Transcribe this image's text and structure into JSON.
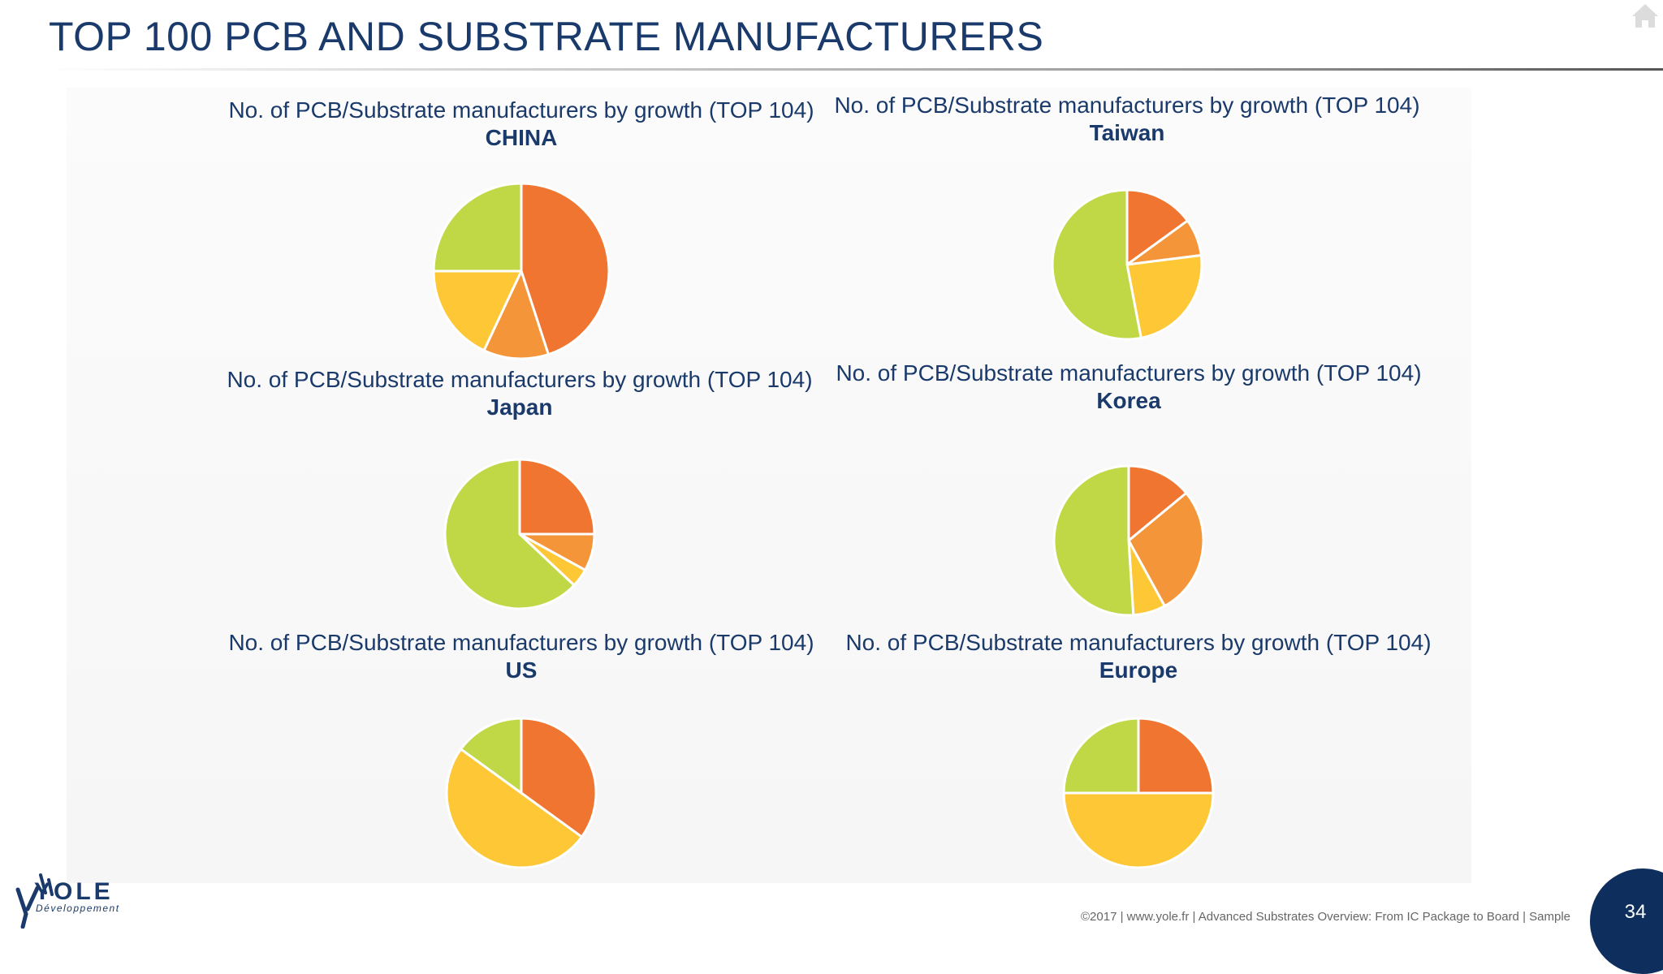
{
  "slide": {
    "title": "TOP 100 PCB AND SUBSTRATE MANUFACTURERS",
    "logo_word": "YOLE",
    "logo_sub": "Développement",
    "footer": "©2017 | www.yole.fr | Advanced Substrates Overview: From IC Package to Board | Sample",
    "page_number": "34"
  },
  "colors": {
    "title": "#1a3a6b",
    "dark_orange": "#ef7530",
    "light_orange": "#f5953a",
    "yellow": "#fdc736",
    "green": "#c0d845"
  },
  "chart_data": [
    {
      "type": "pie",
      "title": "No. of PCB/Substrate manufacturers by growth (TOP 104)",
      "subtitle": "CHINA",
      "slice_colors": [
        "#ef7530",
        "#f5953a",
        "#fdc736",
        "#c0d845"
      ],
      "values": [
        45,
        12,
        18,
        25
      ]
    },
    {
      "type": "pie",
      "title": "No. of PCB/Substrate manufacturers by growth (TOP 104)",
      "subtitle": "Taiwan",
      "slice_colors": [
        "#ef7530",
        "#f5953a",
        "#fdc736",
        "#c0d845"
      ],
      "values": [
        15,
        8,
        24,
        53
      ]
    },
    {
      "type": "pie",
      "title": "No. of PCB/Substrate manufacturers by growth (TOP 104)",
      "subtitle": "Japan",
      "slice_colors": [
        "#ef7530",
        "#f5953a",
        "#fdc736",
        "#c0d845"
      ],
      "values": [
        25,
        8,
        4,
        63
      ]
    },
    {
      "type": "pie",
      "title": "No. of PCB/Substrate manufacturers by growth (TOP 104)",
      "subtitle": "Korea",
      "slice_colors": [
        "#ef7530",
        "#f5953a",
        "#fdc736",
        "#c0d845"
      ],
      "values": [
        14,
        28,
        7,
        51
      ]
    },
    {
      "type": "pie",
      "title": "No. of PCB/Substrate manufacturers by growth (TOP 104)",
      "subtitle": "US",
      "slice_colors": [
        "#ef7530",
        "#fdc736",
        "#c0d845"
      ],
      "values": [
        35,
        50,
        15
      ]
    },
    {
      "type": "pie",
      "title": "No. of PCB/Substrate manufacturers by growth (TOP 104)",
      "subtitle": "Europe",
      "slice_colors": [
        "#ef7530",
        "#fdc736",
        "#c0d845"
      ],
      "values": [
        25,
        50,
        25
      ]
    }
  ]
}
